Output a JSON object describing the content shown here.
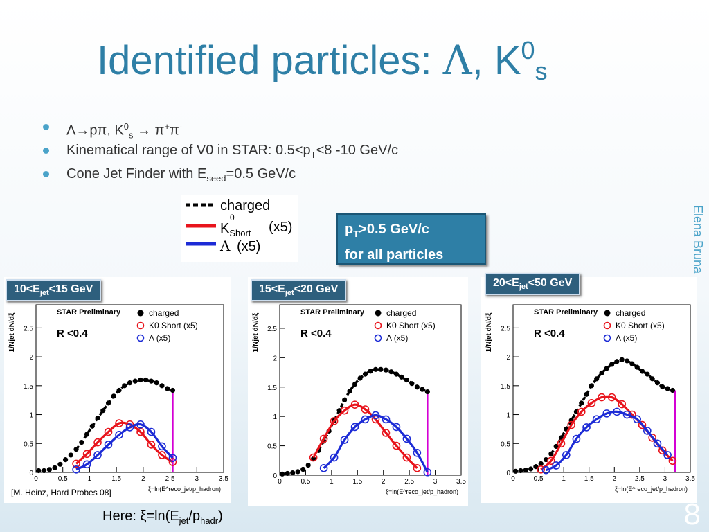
{
  "slide": {
    "title": {
      "main": "Identified particles: ",
      "lambda": "Λ",
      "sep": ", K",
      "sup": "0",
      "sub": "s"
    },
    "bullets": [
      {
        "a": "Λ→pπ, K",
        "sup1": "0",
        "sub1": "s",
        "b": " → π",
        "sup2": "+",
        "c": "π",
        "sup3": "-"
      },
      {
        "a": "Kinematical range of V0 in STAR: 0.5<p",
        "sub1": "T",
        "b": "<8 -10 GeV/c"
      },
      {
        "a": "Cone Jet Finder with E",
        "sub1": "seed",
        "b": "=0.5 GeV/c"
      }
    ],
    "author": "Elena Bruna",
    "legend": [
      "charged",
      "K",
      "Short",
      "0",
      "(x5)",
      "Λ",
      "(x5)"
    ],
    "note": {
      "line1a": "p",
      "line1sub": "T",
      "line1b": ">0.5 GeV/c",
      "line2": "for all particles"
    },
    "reference": "[M. Heinz, Hard Probes 08]",
    "formula": {
      "a": "Here: ξ=ln(E",
      "sub1": "jet",
      "b": "/p",
      "sub2": "hadr",
      "c": ")"
    },
    "page_number": "8",
    "colors": {
      "accent": "#2e7fa6",
      "charged": "#000000",
      "kshort": "#e8141c",
      "lambda": "#1c2bd6",
      "cut": "#d400d4"
    }
  },
  "chart_data": [
    {
      "type": "scatter",
      "tag": {
        "a": "10<E",
        "sub": "jet",
        "b": "<15 GeV"
      },
      "header": "STAR Preliminary",
      "cone": "R <0.4",
      "xlabel": "ξ=ln(E^reco_jet/p_hadron)",
      "ylabel": "1/Njet dN/dξ",
      "xlim": [
        0,
        3.5
      ],
      "ylim": [
        0,
        2.9
      ],
      "xticks": [
        "0",
        "0.5",
        "1",
        "1.5",
        "2",
        "2.5",
        "3",
        "3.5"
      ],
      "yticks": [
        "0",
        "0.5",
        "1",
        "1.5",
        "2",
        "2.5"
      ],
      "legend": [
        "charged",
        "K0 Short (x5)",
        "Λ (x5)"
      ],
      "cut_x": 2.55,
      "series": [
        {
          "name": "charged",
          "x": [
            0.05,
            0.15,
            0.25,
            0.35,
            0.45,
            0.55,
            0.65,
            0.75,
            0.85,
            0.95,
            1.05,
            1.15,
            1.25,
            1.35,
            1.45,
            1.55,
            1.65,
            1.75,
            1.85,
            1.95,
            2.05,
            2.15,
            2.25,
            2.35,
            2.45,
            2.55
          ],
          "y": [
            0.03,
            0.03,
            0.05,
            0.08,
            0.14,
            0.22,
            0.3,
            0.4,
            0.52,
            0.66,
            0.8,
            0.94,
            1.07,
            1.2,
            1.32,
            1.42,
            1.5,
            1.55,
            1.58,
            1.6,
            1.6,
            1.58,
            1.55,
            1.5,
            1.45,
            1.42
          ]
        },
        {
          "name": "K0 Short (x5)",
          "x": [
            0.75,
            0.95,
            1.15,
            1.35,
            1.55,
            1.75,
            1.95,
            2.15,
            2.35,
            2.55
          ],
          "y": [
            0.15,
            0.32,
            0.52,
            0.7,
            0.85,
            0.83,
            0.7,
            0.48,
            0.3,
            0.18
          ]
        },
        {
          "name": "Λ (x5)",
          "x": [
            0.75,
            0.95,
            1.15,
            1.35,
            1.55,
            1.75,
            1.95,
            2.15,
            2.35,
            2.55
          ],
          "y": [
            0.05,
            0.14,
            0.3,
            0.48,
            0.65,
            0.78,
            0.83,
            0.7,
            0.45,
            0.25
          ]
        }
      ]
    },
    {
      "type": "scatter",
      "tag": {
        "a": "15<E",
        "sub": "jet",
        "b": "<20 GeV"
      },
      "header": "STAR Preliminary",
      "cone": "R <0.4",
      "xlabel": "ξ=ln(E^reco_jet/p_hadron)",
      "ylabel": "1/Njet dN/dξ",
      "xlim": [
        0,
        3.5
      ],
      "ylim": [
        0,
        2.9
      ],
      "xticks": [
        "0",
        "0.5",
        "1",
        "1.5",
        "2",
        "2.5",
        "3",
        "3.5"
      ],
      "yticks": [
        "0",
        "0.5",
        "1",
        "1.5",
        "2",
        "2.5"
      ],
      "legend": [
        "charged",
        "K0 Short (x5)",
        "Λ (x5)"
      ],
      "cut_x": 2.85,
      "series": [
        {
          "name": "charged",
          "x": [
            0.05,
            0.15,
            0.25,
            0.35,
            0.45,
            0.55,
            0.65,
            0.75,
            0.85,
            0.95,
            1.05,
            1.15,
            1.25,
            1.35,
            1.45,
            1.55,
            1.65,
            1.75,
            1.85,
            1.95,
            2.05,
            2.15,
            2.25,
            2.35,
            2.45,
            2.55,
            2.65,
            2.75,
            2.85
          ],
          "y": [
            0.02,
            0.03,
            0.04,
            0.06,
            0.1,
            0.17,
            0.28,
            0.42,
            0.58,
            0.75,
            0.93,
            1.1,
            1.28,
            1.43,
            1.55,
            1.65,
            1.72,
            1.77,
            1.8,
            1.8,
            1.79,
            1.76,
            1.72,
            1.67,
            1.62,
            1.56,
            1.5,
            1.46,
            1.42
          ]
        },
        {
          "name": "K0 Short (x5)",
          "x": [
            0.65,
            0.85,
            1.05,
            1.25,
            1.45,
            1.65,
            1.85,
            2.05,
            2.25,
            2.45,
            2.65
          ],
          "y": [
            0.3,
            0.62,
            0.92,
            1.1,
            1.2,
            1.12,
            0.95,
            0.72,
            0.5,
            0.3,
            0.12
          ]
        },
        {
          "name": "Λ (x5)",
          "x": [
            0.85,
            1.05,
            1.25,
            1.45,
            1.65,
            1.85,
            2.05,
            2.25,
            2.45,
            2.65,
            2.85
          ],
          "y": [
            0.12,
            0.3,
            0.6,
            0.82,
            0.95,
            1.02,
            0.95,
            0.82,
            0.62,
            0.38,
            0.05
          ]
        }
      ]
    },
    {
      "type": "scatter",
      "tag": {
        "a": "20<E",
        "sub": "jet",
        "b": "<50 GeV"
      },
      "header": "STAR Preliminary",
      "cone": "R <0.4",
      "xlabel": "ξ=ln(E^reco_jet/p_hadron)",
      "ylabel": "1/Njet dN/dξ",
      "xlim": [
        0,
        3.5
      ],
      "ylim": [
        0,
        2.9
      ],
      "xticks": [
        "0",
        "0.5",
        "1",
        "1.5",
        "2",
        "2.5",
        "3",
        "3.5"
      ],
      "yticks": [
        "0",
        "0.5",
        "1",
        "1.5",
        "2",
        "2.5"
      ],
      "legend": [
        "charged",
        "K0 Short (x5)",
        "Λ (x5)"
      ],
      "cut_x": 3.2,
      "series": [
        {
          "name": "charged",
          "x": [
            0.05,
            0.15,
            0.25,
            0.35,
            0.45,
            0.55,
            0.65,
            0.75,
            0.85,
            0.95,
            1.05,
            1.15,
            1.25,
            1.35,
            1.45,
            1.55,
            1.65,
            1.75,
            1.85,
            1.95,
            2.05,
            2.15,
            2.25,
            2.35,
            2.45,
            2.55,
            2.65,
            2.75,
            2.85,
            2.95,
            3.05,
            3.15
          ],
          "y": [
            0.02,
            0.03,
            0.04,
            0.06,
            0.1,
            0.15,
            0.22,
            0.32,
            0.45,
            0.6,
            0.75,
            0.9,
            1.05,
            1.2,
            1.35,
            1.5,
            1.62,
            1.72,
            1.8,
            1.87,
            1.92,
            1.95,
            1.93,
            1.88,
            1.82,
            1.75,
            1.7,
            1.62,
            1.55,
            1.48,
            1.45,
            1.42
          ]
        },
        {
          "name": "K0 Short (x5)",
          "x": [
            0.55,
            0.75,
            0.95,
            1.15,
            1.35,
            1.55,
            1.75,
            1.95,
            2.15,
            2.35,
            2.55,
            2.75,
            2.95,
            3.15
          ],
          "y": [
            0.05,
            0.2,
            0.5,
            0.82,
            1.05,
            1.2,
            1.3,
            1.3,
            1.18,
            1.0,
            0.82,
            0.6,
            0.38,
            0.2
          ]
        },
        {
          "name": "Λ (x5)",
          "x": [
            0.65,
            0.85,
            1.05,
            1.25,
            1.45,
            1.65,
            1.85,
            2.05,
            2.25,
            2.45,
            2.65,
            2.85,
            3.05
          ],
          "y": [
            0.04,
            0.12,
            0.3,
            0.58,
            0.78,
            0.92,
            1.02,
            1.05,
            1.0,
            0.92,
            0.72,
            0.5,
            0.3
          ]
        }
      ]
    }
  ]
}
